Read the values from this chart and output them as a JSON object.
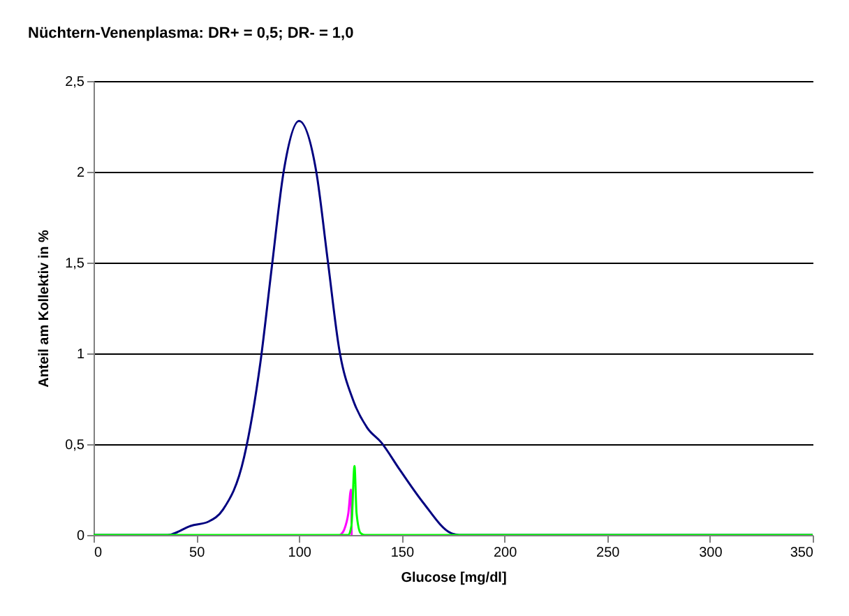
{
  "chart_data": {
    "type": "line",
    "title": "Nüchtern-Venenplasma: DR+ = 0,5; DR- = 1,0",
    "xlabel": "Glucose [mg/dl]",
    "ylabel": "Anteil am Kollektiv in %",
    "xlim": [
      0,
      350
    ],
    "xticks": [
      0,
      50,
      100,
      150,
      200,
      250,
      300,
      350
    ],
    "ylim": [
      0,
      2.5
    ],
    "yticks": [
      0,
      {
        "value": 0.5,
        "label": "0,5"
      },
      1,
      {
        "value": 1.5,
        "label": "1,5"
      },
      2,
      {
        "value": 2.5,
        "label": "2,5"
      }
    ],
    "grid": "y",
    "legend": false,
    "marker": "none",
    "line_style": "solid",
    "series": [
      {
        "color": "#000080",
        "x": [
          0,
          36,
          47.3,
          56,
          63,
          73.3,
          81.2,
          86.8,
          92.5,
          100,
          108.4,
          114,
          119.6,
          126.4,
          133.2,
          140,
          149,
          160.3,
          174,
          178,
          350
        ],
        "values": [
          0,
          0,
          0.05,
          0.074,
          0.14,
          0.43,
          0.95,
          1.48,
          2.0,
          2.28,
          2.0,
          1.51,
          1.02,
          0.74,
          0.59,
          0.51,
          0.36,
          0.18,
          0.01,
          0,
          0
        ]
      },
      {
        "color": "#ff00ff",
        "x": [
          120,
          122,
          124,
          125.3,
          125.6
        ],
        "values": [
          0,
          0.03,
          0.12,
          0.25,
          0
        ]
      },
      {
        "color": "#00ff00",
        "x": [
          0,
          124,
          125.5,
          127,
          128,
          130,
          132,
          350
        ],
        "values": [
          0,
          0,
          0.05,
          0.38,
          0.12,
          0.01,
          0,
          0
        ]
      }
    ]
  }
}
